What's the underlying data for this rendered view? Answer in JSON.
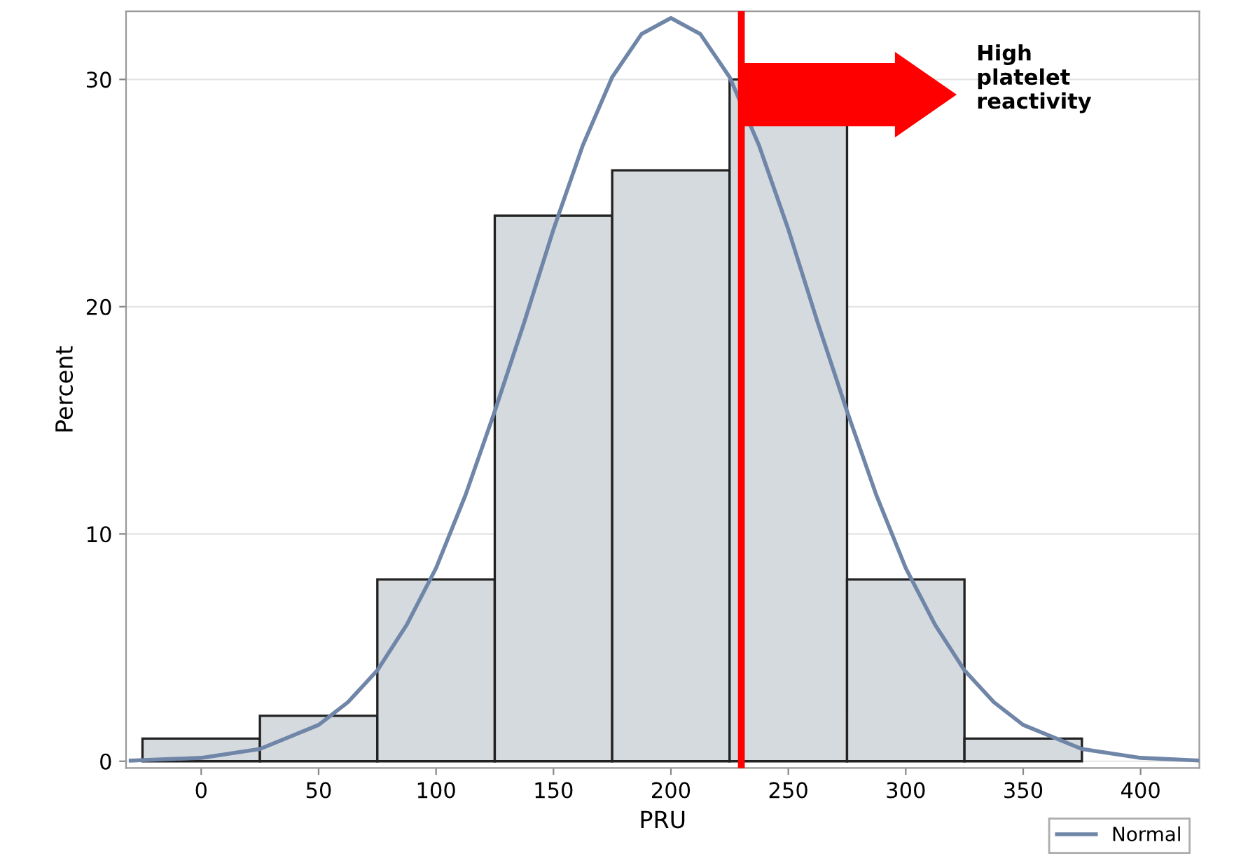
{
  "chart_data": {
    "type": "histogram",
    "xlabel": "PRU",
    "ylabel": "Percent",
    "bins": [
      -25,
      25,
      75,
      125,
      175,
      225,
      275,
      325,
      375
    ],
    "values": [
      1,
      2,
      8,
      24,
      26,
      30,
      8,
      1
    ],
    "color": "#d5dade",
    "series": [
      {
        "type": "line",
        "name": "Normal",
        "color": "#7086a8",
        "x": [
          -30,
          0,
          25,
          50,
          62.5,
          75,
          87.5,
          100,
          112.5,
          125,
          137.5,
          150,
          162.5,
          175,
          187.5,
          200,
          212.5,
          225,
          237.5,
          250,
          262.5,
          275,
          287.5,
          300,
          312.5,
          325,
          337.5,
          350,
          375,
          400,
          425
        ],
        "values": [
          0.03,
          0.15,
          0.54,
          1.6,
          2.6,
          4.0,
          6.0,
          8.5,
          11.7,
          15.4,
          19.3,
          23.4,
          27.1,
          30.1,
          32.0,
          32.7,
          32.0,
          30.1,
          27.1,
          23.4,
          19.3,
          15.4,
          11.7,
          8.5,
          6.0,
          4.0,
          2.6,
          1.6,
          0.54,
          0.15,
          0.03
        ]
      }
    ],
    "ref_lines": [
      {
        "axis": "x",
        "value": 230,
        "color": "#ff0000"
      }
    ],
    "annotations": [
      "High\nplatelet\nreactivity"
    ],
    "xlim": [
      -32,
      425
    ],
    "ylim": [
      -0.3,
      33
    ],
    "xticks": [
      0,
      50,
      100,
      150,
      200,
      250,
      300,
      350,
      400
    ],
    "yticks": [
      0,
      10,
      20,
      30
    ],
    "grid": "y",
    "legend": "bottom right"
  }
}
